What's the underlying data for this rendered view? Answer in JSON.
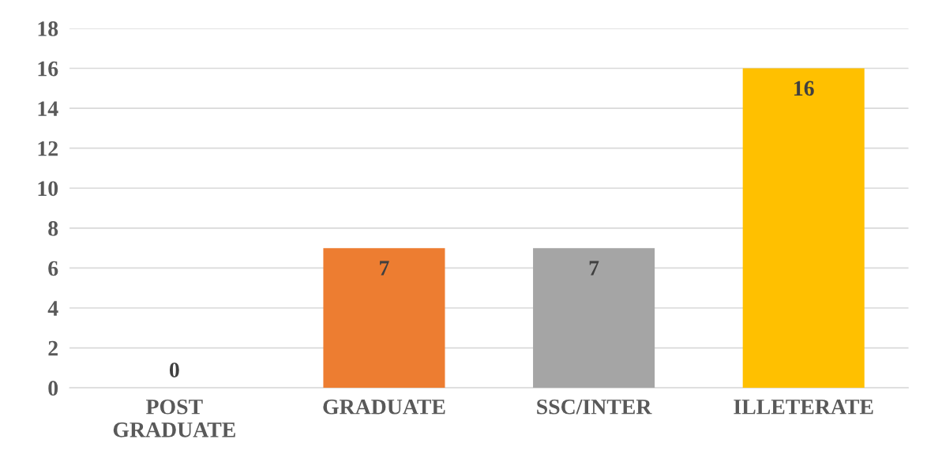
{
  "chart_data": {
    "type": "bar",
    "categories": [
      "POST\nGRADUATE",
      "GRADUATE",
      "SSC/INTER",
      "ILLETERATE"
    ],
    "values": [
      0,
      7,
      7,
      16
    ],
    "colors": [
      "#4472c4",
      "#ed7d31",
      "#a5a5a5",
      "#ffc000"
    ],
    "ylim": [
      0,
      18
    ],
    "yticks": [
      0,
      2,
      4,
      6,
      8,
      10,
      12,
      14,
      16,
      18
    ],
    "grid": "y",
    "data_labels": true
  }
}
